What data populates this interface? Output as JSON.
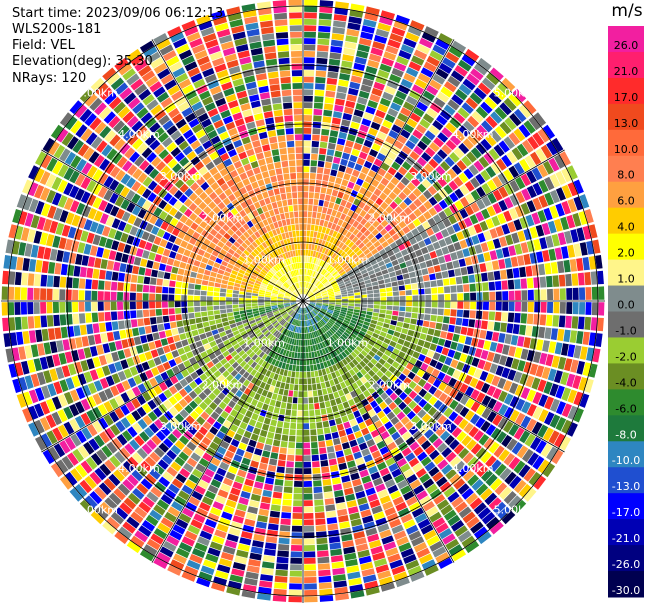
{
  "header": {
    "start_time": "Start time: 2023/09/06 06:12:13",
    "site": "WLS200s-181",
    "field": "Field: VEL",
    "elevation": "Elevation(deg): 35.30",
    "nrays": "NRays: 120"
  },
  "colorbar": {
    "unit": "m/s",
    "ticks": [
      "26.0",
      "21.0",
      "17.0",
      "13.0",
      "10.0",
      "8.0",
      "6.0",
      "4.0",
      "2.0",
      "1.0",
      "0.0",
      "-1.0",
      "-2.0",
      "-4.0",
      "-6.0",
      "-8.0",
      "-10.0",
      "-13.0",
      "-17.0",
      "-21.0",
      "-26.0",
      "-30.0"
    ],
    "colors": [
      "#f21fa0",
      "#ff1f6e",
      "#ff2b2b",
      "#f04a1e",
      "#ff6a3a",
      "#ff7f50",
      "#ffa040",
      "#ffcc00",
      "#ffff00",
      "#fff58a",
      "#7f8c8d",
      "#6e6e6e",
      "#9acd32",
      "#6b8e23",
      "#2e8b2e",
      "#1e7a3c",
      "#2e86c1",
      "#1f4fd0",
      "#0000ff",
      "#0000b4",
      "#000080",
      "#000050"
    ]
  },
  "chart_data": {
    "type": "heatmap",
    "title": "",
    "ppi": {
      "field": "VEL",
      "unit": "m/s",
      "n_rays": 120,
      "elevation_deg": 35.3,
      "range_ring_labels": [
        "1.00km",
        "2.00km",
        "3.00km",
        "4.00km",
        "5.00km"
      ],
      "value_range": [
        -30.0,
        26.0
      ],
      "pattern": "north half positive velocities (yellow/orange), south half negative velocities (green/blue), outer ranges noisy"
    }
  }
}
